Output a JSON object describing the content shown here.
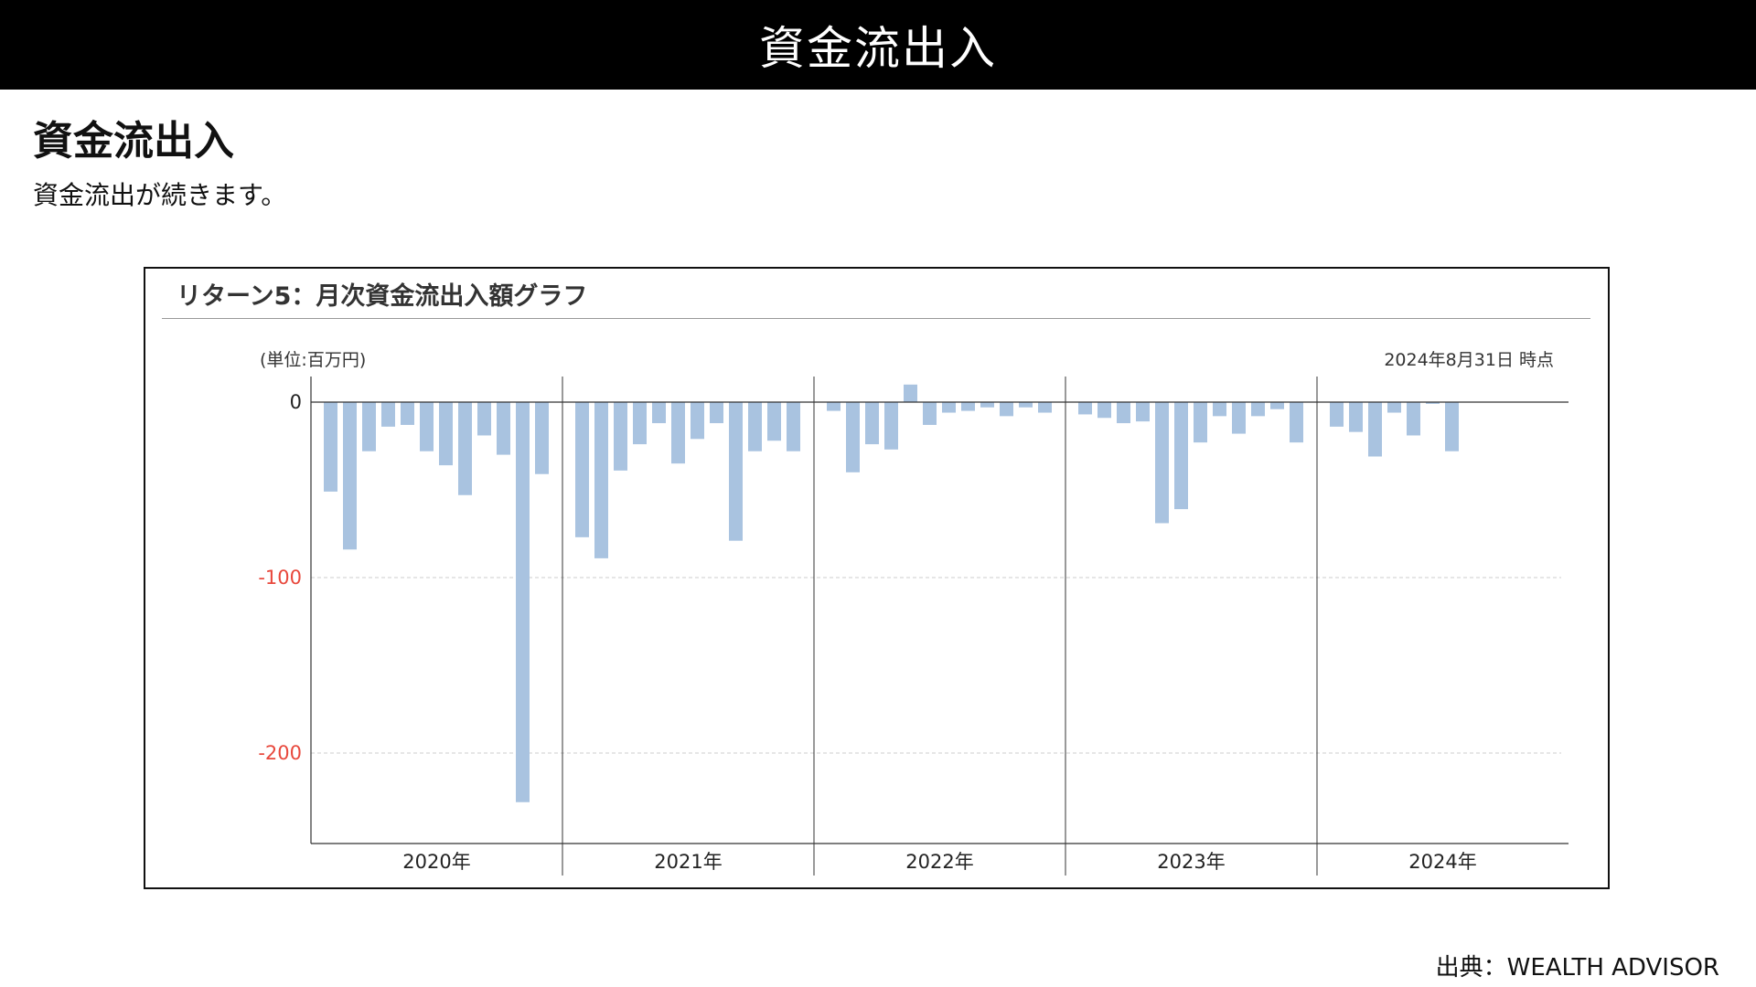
{
  "header": {
    "title": "資金流出入"
  },
  "section": {
    "heading": "資金流出入",
    "description": "資金流出が続きます。"
  },
  "chart_data": {
    "type": "bar",
    "title": "リターン5：月次資金流出入額グラフ",
    "unit_label": "(単位:百万円)",
    "as_of_label": "2024年8月31日 時点",
    "ylim": [
      -250,
      10
    ],
    "yticks": [
      {
        "value": 0,
        "label": "0"
      },
      {
        "value": -100,
        "label": "-100"
      },
      {
        "value": -200,
        "label": "-200"
      }
    ],
    "year_labels": [
      "2020年",
      "2021年",
      "2022年",
      "2023年",
      "2024年"
    ],
    "grid": true,
    "colors": {
      "bar": "#a9c3e0",
      "negative_tick": "#e8483c",
      "grid": "#cccccc",
      "axis": "#333333"
    },
    "values": [
      -51,
      -84,
      -28,
      -14,
      -13,
      -28,
      -36,
      -53,
      -19,
      -30,
      -228,
      -41,
      -77,
      -89,
      -39,
      -24,
      -12,
      -35,
      -21,
      -12,
      -79,
      -28,
      -22,
      -28,
      -5,
      -40,
      -24,
      -27,
      10,
      -13,
      -6,
      -5,
      -3,
      -8,
      -3,
      -6,
      -7,
      -9,
      -12,
      -11,
      -69,
      -61,
      -23,
      -8,
      -18,
      -8,
      -4,
      -23,
      -14,
      -17,
      -31,
      -6,
      -19,
      -1,
      -28
    ]
  },
  "footer": {
    "source": "出典：WEALTH ADVISOR"
  }
}
